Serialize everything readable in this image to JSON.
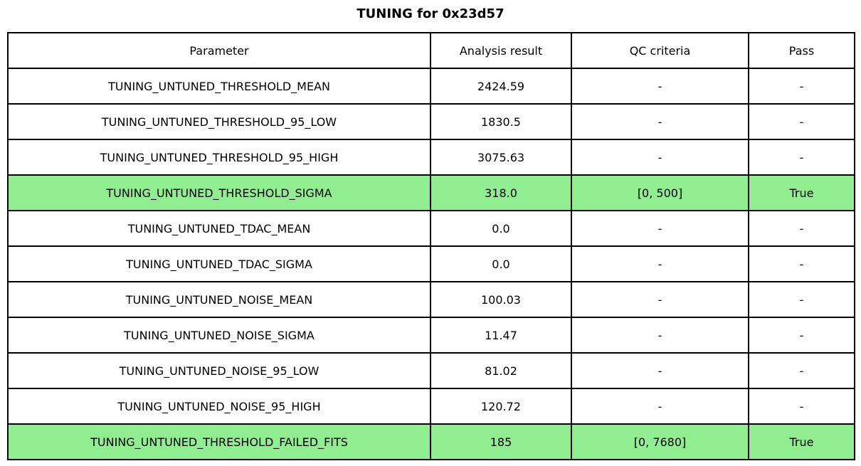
{
  "title": "TUNING for 0x23d57",
  "chart_data": {
    "type": "table",
    "title": "TUNING for 0x23d57",
    "columns": [
      "Parameter",
      "Analysis result",
      "QC criteria",
      "Pass"
    ],
    "rows": [
      {
        "parameter": "TUNING_UNTUNED_THRESHOLD_MEAN",
        "analysis_result": "2424.59",
        "qc_criteria": "-",
        "pass": "-",
        "highlighted": false
      },
      {
        "parameter": "TUNING_UNTUNED_THRESHOLD_95_LOW",
        "analysis_result": "1830.5",
        "qc_criteria": "-",
        "pass": "-",
        "highlighted": false
      },
      {
        "parameter": "TUNING_UNTUNED_THRESHOLD_95_HIGH",
        "analysis_result": "3075.63",
        "qc_criteria": "-",
        "pass": "-",
        "highlighted": false
      },
      {
        "parameter": "TUNING_UNTUNED_THRESHOLD_SIGMA",
        "analysis_result": "318.0",
        "qc_criteria": "[0, 500]",
        "pass": "True",
        "highlighted": true
      },
      {
        "parameter": "TUNING_UNTUNED_TDAC_MEAN",
        "analysis_result": "0.0",
        "qc_criteria": "-",
        "pass": "-",
        "highlighted": false
      },
      {
        "parameter": "TUNING_UNTUNED_TDAC_SIGMA",
        "analysis_result": "0.0",
        "qc_criteria": "-",
        "pass": "-",
        "highlighted": false
      },
      {
        "parameter": "TUNING_UNTUNED_NOISE_MEAN",
        "analysis_result": "100.03",
        "qc_criteria": "-",
        "pass": "-",
        "highlighted": false
      },
      {
        "parameter": "TUNING_UNTUNED_NOISE_SIGMA",
        "analysis_result": "11.47",
        "qc_criteria": "-",
        "pass": "-",
        "highlighted": false
      },
      {
        "parameter": "TUNING_UNTUNED_NOISE_95_LOW",
        "analysis_result": "81.02",
        "qc_criteria": "-",
        "pass": "-",
        "highlighted": false
      },
      {
        "parameter": "TUNING_UNTUNED_NOISE_95_HIGH",
        "analysis_result": "120.72",
        "qc_criteria": "-",
        "pass": "-",
        "highlighted": false
      },
      {
        "parameter": "TUNING_UNTUNED_THRESHOLD_FAILED_FITS",
        "analysis_result": "185",
        "qc_criteria": "[0, 7680]",
        "pass": "True",
        "highlighted": true
      }
    ],
    "legend_position": "none",
    "grid": "table-borders"
  },
  "colors": {
    "highlight": "#90EE90",
    "border": "#000000",
    "background": "#ffffff",
    "text": "#000000"
  }
}
